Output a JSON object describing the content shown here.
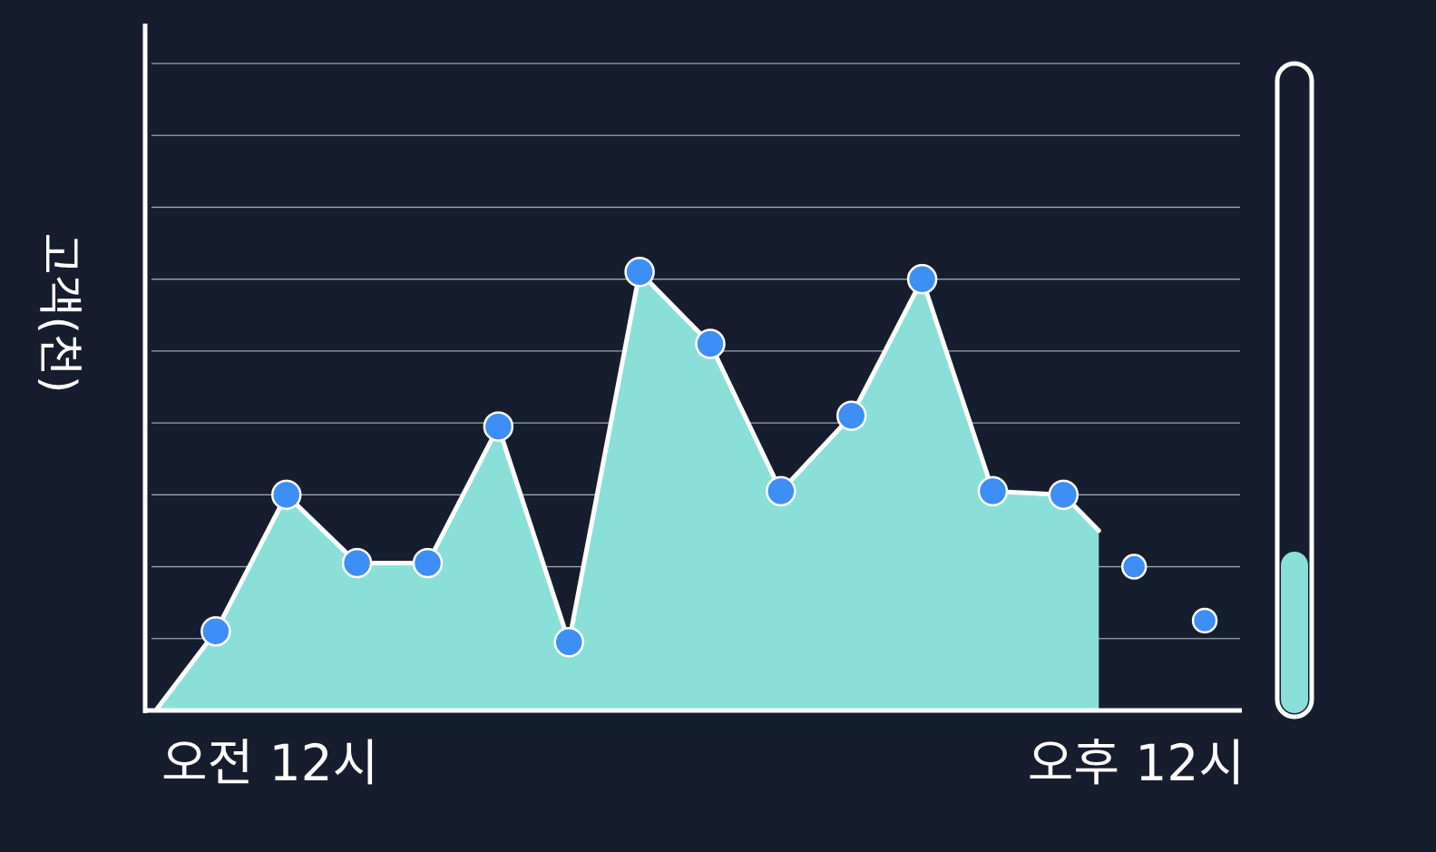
{
  "colors": {
    "background": "#161d2e",
    "area_fill": "#8adfd9",
    "line": "#ffffff",
    "point": "#3d8ef5",
    "grid": "#c8cfdb",
    "axis": "#ffffff"
  },
  "chart_data": {
    "type": "area",
    "title": "",
    "ylabel": "고객(천)",
    "xlabel": "",
    "x_tick_labels": {
      "start": "오전 12시",
      "end": "오후 12시"
    },
    "ylim": [
      0,
      9
    ],
    "y_ticks_shown": false,
    "grid": true,
    "gridline_count": 9,
    "x": [
      1,
      2,
      3,
      4,
      5,
      6,
      7,
      8,
      9,
      10,
      11,
      12,
      13,
      14,
      15
    ],
    "xlim": [
      0,
      15.5
    ],
    "series": [
      {
        "values": [
          1.1,
          3.0,
          2.05,
          2.05,
          3.95,
          0.95,
          6.1,
          5.1,
          3.05,
          4.1,
          6.0,
          3.05,
          3.0,
          2.0,
          1.25
        ],
        "area_extends_to": 13.5
      }
    ],
    "progress_gauge": {
      "label": "",
      "fraction": 0.25,
      "fill_color": "#8adfd9"
    }
  }
}
